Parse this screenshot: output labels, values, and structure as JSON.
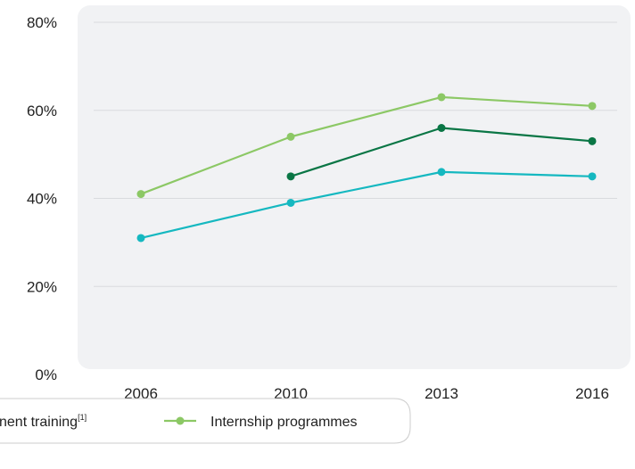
{
  "chart_data": {
    "type": "line",
    "x": [
      "2006",
      "2010",
      "2013",
      "2016"
    ],
    "ylim": [
      0,
      80
    ],
    "yticks": [
      "0%",
      "20%",
      "40%",
      "60%",
      "80%"
    ],
    "grid": true,
    "legend_position": "bottom",
    "series": [
      {
        "name": "Internship programmes",
        "color": "#8cc865",
        "values": [
          41,
          54,
          63,
          61
        ]
      },
      {
        "name": "",
        "color": "#0a7645",
        "values": [
          null,
          45,
          56,
          53
        ]
      },
      {
        "name": "",
        "color": "#15b8c0",
        "values": [
          31,
          39,
          46,
          45
        ]
      }
    ],
    "legend": {
      "partial_label": "nent training",
      "partial_sup": "[1]"
    }
  }
}
